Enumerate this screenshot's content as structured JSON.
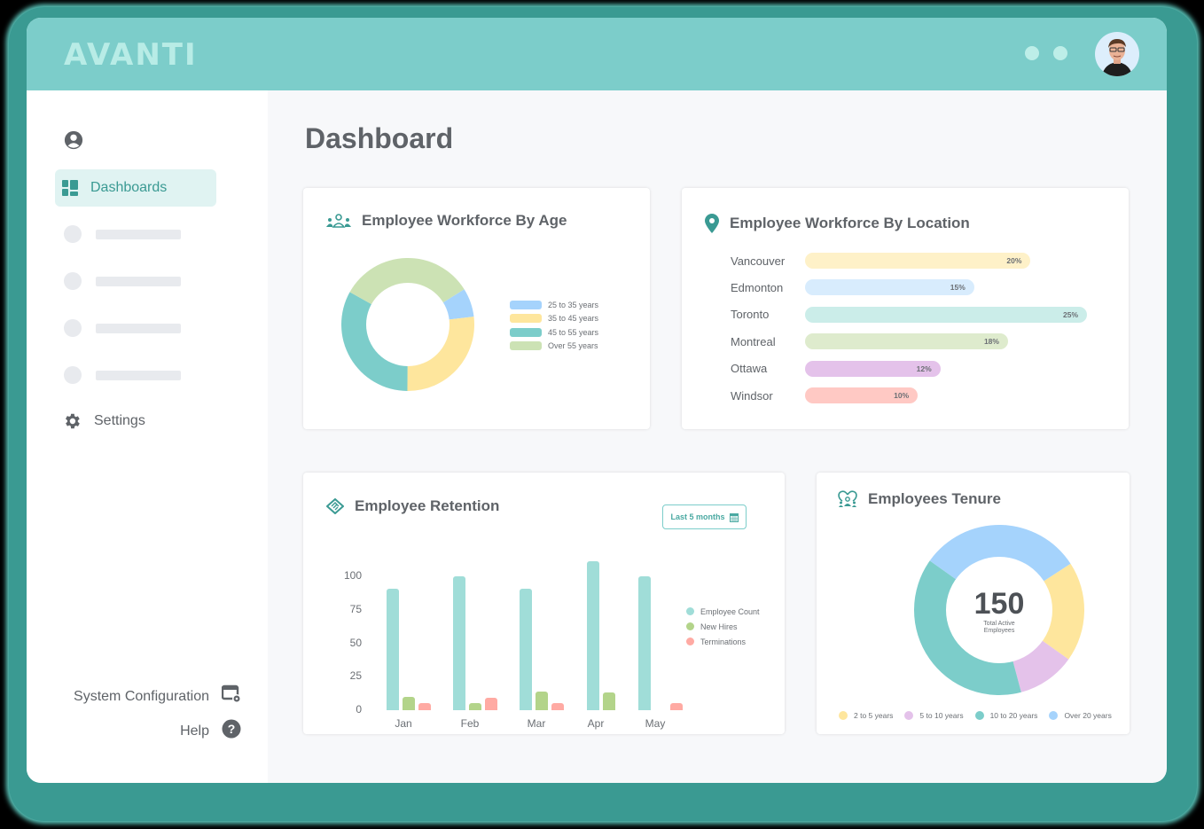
{
  "app": {
    "logo": "AVANTI"
  },
  "header": {
    "dots": 2,
    "avatar_alt": "User avatar"
  },
  "sidebar": {
    "items": [
      {
        "label": "",
        "icon": "user-circle-icon"
      },
      {
        "label": "Dashboards",
        "icon": "dashboard-grid-icon",
        "active": true
      },
      {
        "label": "",
        "placeholder": true
      },
      {
        "label": "",
        "placeholder": true
      },
      {
        "label": "",
        "placeholder": true
      },
      {
        "label": "",
        "placeholder": true
      },
      {
        "label": "Settings",
        "icon": "gear-icon"
      }
    ],
    "bottom": [
      {
        "label": "System Configuration",
        "icon": "system-config-icon"
      },
      {
        "label": "Help",
        "icon": "help-circle-icon"
      }
    ]
  },
  "main": {
    "title": "Dashboard"
  },
  "cards": {
    "age": {
      "title": "Employee Workforce By Age",
      "icon": "people-group-icon"
    },
    "location": {
      "title": "Employee Workforce By Location",
      "icon": "map-pin-icon"
    },
    "retention": {
      "title": "Employee Retention",
      "icon": "handshake-icon",
      "range_button": "Last 5 months",
      "range_icon": "calendar-icon"
    },
    "tenure": {
      "title": "Employees Tenure",
      "icon": "team-heart-icon",
      "center_value": "150",
      "center_label_1": "Total Active",
      "center_label_2": "Employees"
    }
  },
  "colors": {
    "teal": "#7ccdca",
    "blue": "#a5d3fc",
    "yellow": "#fee69d",
    "green": "#cce2b4",
    "purple": "#e4c2ea",
    "red": "#ffaaa3",
    "bar_teal": "#a0ddd8",
    "bar_green": "#b3d48a"
  },
  "chart_data": [
    {
      "type": "pie",
      "title": "Employee Workforce By Age",
      "donut": true,
      "categories": [
        "25 to 35 years",
        "35 to 45 years",
        "45 to 55 years",
        "Over 55 years"
      ],
      "values": [
        7,
        27,
        33,
        33
      ],
      "colors": [
        "#a5d3fc",
        "#fee69d",
        "#7ccdca",
        "#cce2b4"
      ],
      "legend_position": "right"
    },
    {
      "type": "bar",
      "orientation": "horizontal",
      "title": "Employee Workforce By Location",
      "categories": [
        "Vancouver",
        "Edmonton",
        "Toronto",
        "Montreal",
        "Ottawa",
        "Windsor"
      ],
      "values": [
        20,
        15,
        25,
        18,
        12,
        10
      ],
      "labels": [
        "20%",
        "15%",
        "25%",
        "18%",
        "12%",
        "10%"
      ],
      "colors": [
        "#fef1c8",
        "#d8ecfd",
        "#cbede9",
        "#deebcd",
        "#e4c2ea",
        "#ffc9c4"
      ]
    },
    {
      "type": "bar",
      "title": "Employee Retention",
      "categories": [
        "Jan",
        "Feb",
        "Mar",
        "Apr",
        "May"
      ],
      "series": [
        {
          "name": "Employee Count",
          "values": [
            91,
            100,
            91,
            111,
            100
          ],
          "color": "#a0ddd8"
        },
        {
          "name": "New Hires",
          "values": [
            10,
            5,
            14,
            13,
            0
          ],
          "color": "#b3d48a"
        },
        {
          "name": "Terminations",
          "values": [
            5,
            9,
            5,
            0,
            5
          ],
          "color": "#ffaaa3"
        }
      ],
      "yticks": [
        0,
        25,
        50,
        75,
        100
      ],
      "ylim": [
        0,
        115
      ],
      "grid": false,
      "legend_position": "right"
    },
    {
      "type": "pie",
      "title": "Employees Tenure",
      "donut": true,
      "center_text": "150 Total Active Employees",
      "categories": [
        "2 to 5 years",
        "5 to 10 years",
        "10 to 20 years",
        "Over 20 years"
      ],
      "values": [
        19,
        11,
        39,
        31
      ],
      "colors": [
        "#fee69d",
        "#e4c2ea",
        "#7ccdca",
        "#a5d3fc"
      ],
      "legend_position": "bottom"
    }
  ]
}
